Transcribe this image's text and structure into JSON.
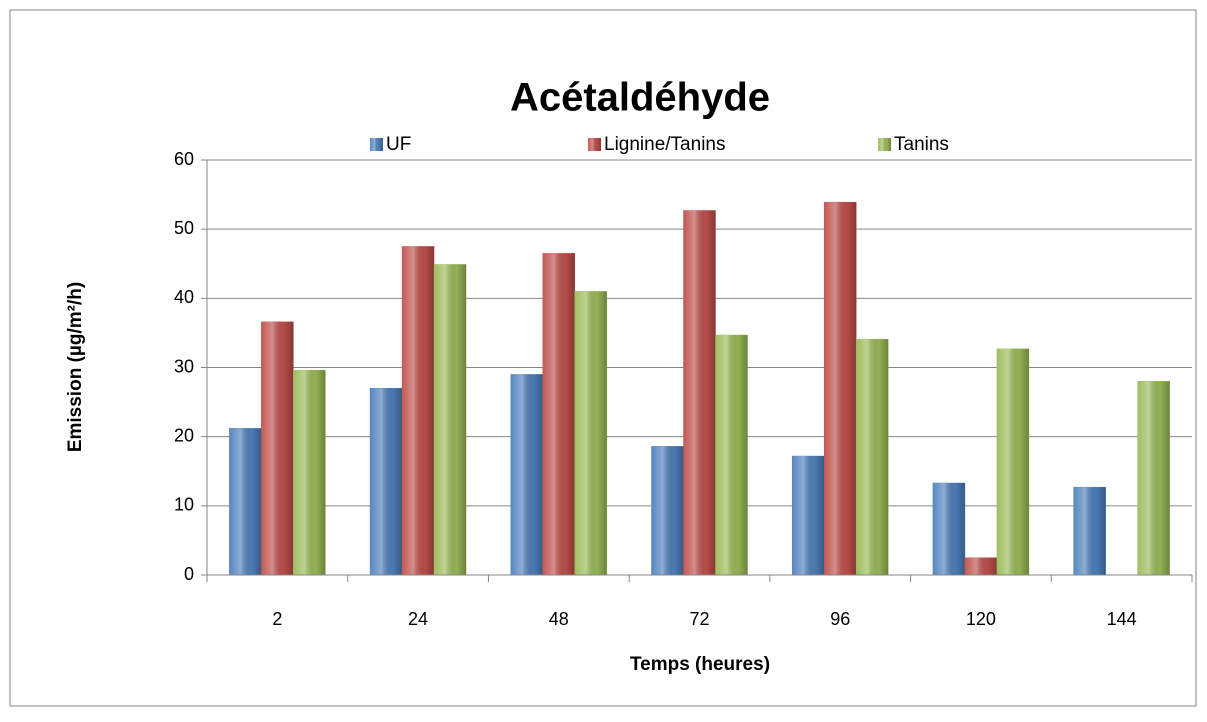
{
  "chart_data": {
    "type": "bar",
    "title": "Acétaldéhyde",
    "x_label": "Temps (heures)",
    "y_label": "Emission (µg/m²/h)",
    "categories": [
      "2",
      "24",
      "48",
      "72",
      "96",
      "120",
      "144"
    ],
    "series": [
      {
        "name": "UF",
        "color": "#4f81bd",
        "values": [
          21.2,
          27.0,
          29.0,
          18.6,
          17.2,
          13.3,
          12.7
        ]
      },
      {
        "name": "Lignine/Tanins",
        "color": "#c0504d",
        "values": [
          36.6,
          47.5,
          46.5,
          52.7,
          53.9,
          2.5,
          null
        ]
      },
      {
        "name": "Tanins",
        "color": "#9bbb59",
        "values": [
          29.6,
          44.9,
          41.0,
          34.7,
          34.1,
          32.7,
          28.0
        ]
      }
    ],
    "ylim": [
      0,
      60
    ],
    "yticks": [
      0,
      10,
      20,
      30,
      40,
      50,
      60
    ],
    "grid": true,
    "legend": "top"
  }
}
